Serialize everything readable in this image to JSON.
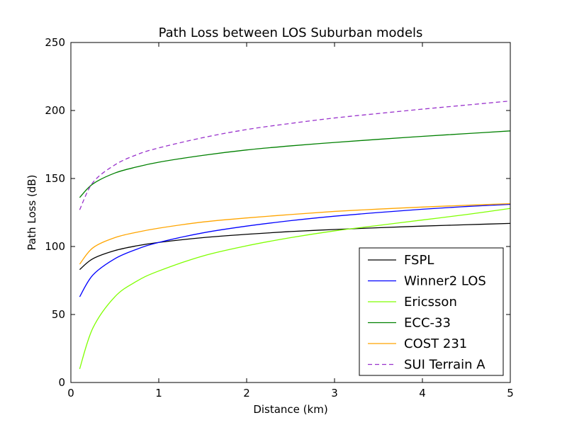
{
  "chart_data": {
    "type": "line",
    "title": "Path Loss between LOS Suburban models",
    "xlabel": "Distance (km)",
    "ylabel": "Path Loss (dB)",
    "xlim": [
      0,
      5
    ],
    "ylim": [
      0,
      250
    ],
    "xticks": [
      0,
      1,
      2,
      3,
      4,
      5
    ],
    "yticks": [
      0,
      50,
      100,
      150,
      200,
      250
    ],
    "grid": false,
    "legend_position": "lower-right",
    "x": [
      0.1,
      0.25,
      0.5,
      0.75,
      1.0,
      1.5,
      2.0,
      2.5,
      3.0,
      3.5,
      4.0,
      4.5,
      5.0
    ],
    "series": [
      {
        "name": "FSPL",
        "color": "#000000",
        "dash": "solid",
        "values": [
          83,
          91,
          97,
          100.5,
          103,
          106.5,
          109,
          111,
          112.5,
          113.8,
          115,
          116,
          117
        ]
      },
      {
        "name": "Winner2 LOS",
        "color": "#0000ff",
        "dash": "solid",
        "values": [
          63,
          79,
          91,
          98,
          103,
          110,
          115,
          119,
          122.3,
          125,
          127.4,
          129.4,
          131
        ]
      },
      {
        "name": "Ericsson",
        "color": "#7fff00",
        "dash": "solid",
        "values": [
          10,
          40,
          63,
          74.5,
          82,
          93,
          100.5,
          106.5,
          111.5,
          115.5,
          119.5,
          123.5,
          128
        ]
      },
      {
        "name": "ECC-33",
        "color": "#008000",
        "dash": "solid",
        "values": [
          136,
          146,
          154,
          158.5,
          162,
          167,
          171,
          174,
          176.5,
          178.8,
          181,
          183,
          185
        ]
      },
      {
        "name": "COST 231",
        "color": "#ffa500",
        "dash": "solid",
        "values": [
          87,
          99,
          106.5,
          110.5,
          113.5,
          118,
          121,
          123.5,
          125.8,
          127.5,
          129,
          130.3,
          131.5
        ]
      },
      {
        "name": "SUI Terrain A",
        "color": "#9932cc",
        "dash": "dashed",
        "values": [
          127,
          147,
          160,
          167.5,
          172.5,
          180,
          186,
          190.5,
          194.5,
          197.8,
          201,
          204,
          207
        ]
      }
    ]
  }
}
